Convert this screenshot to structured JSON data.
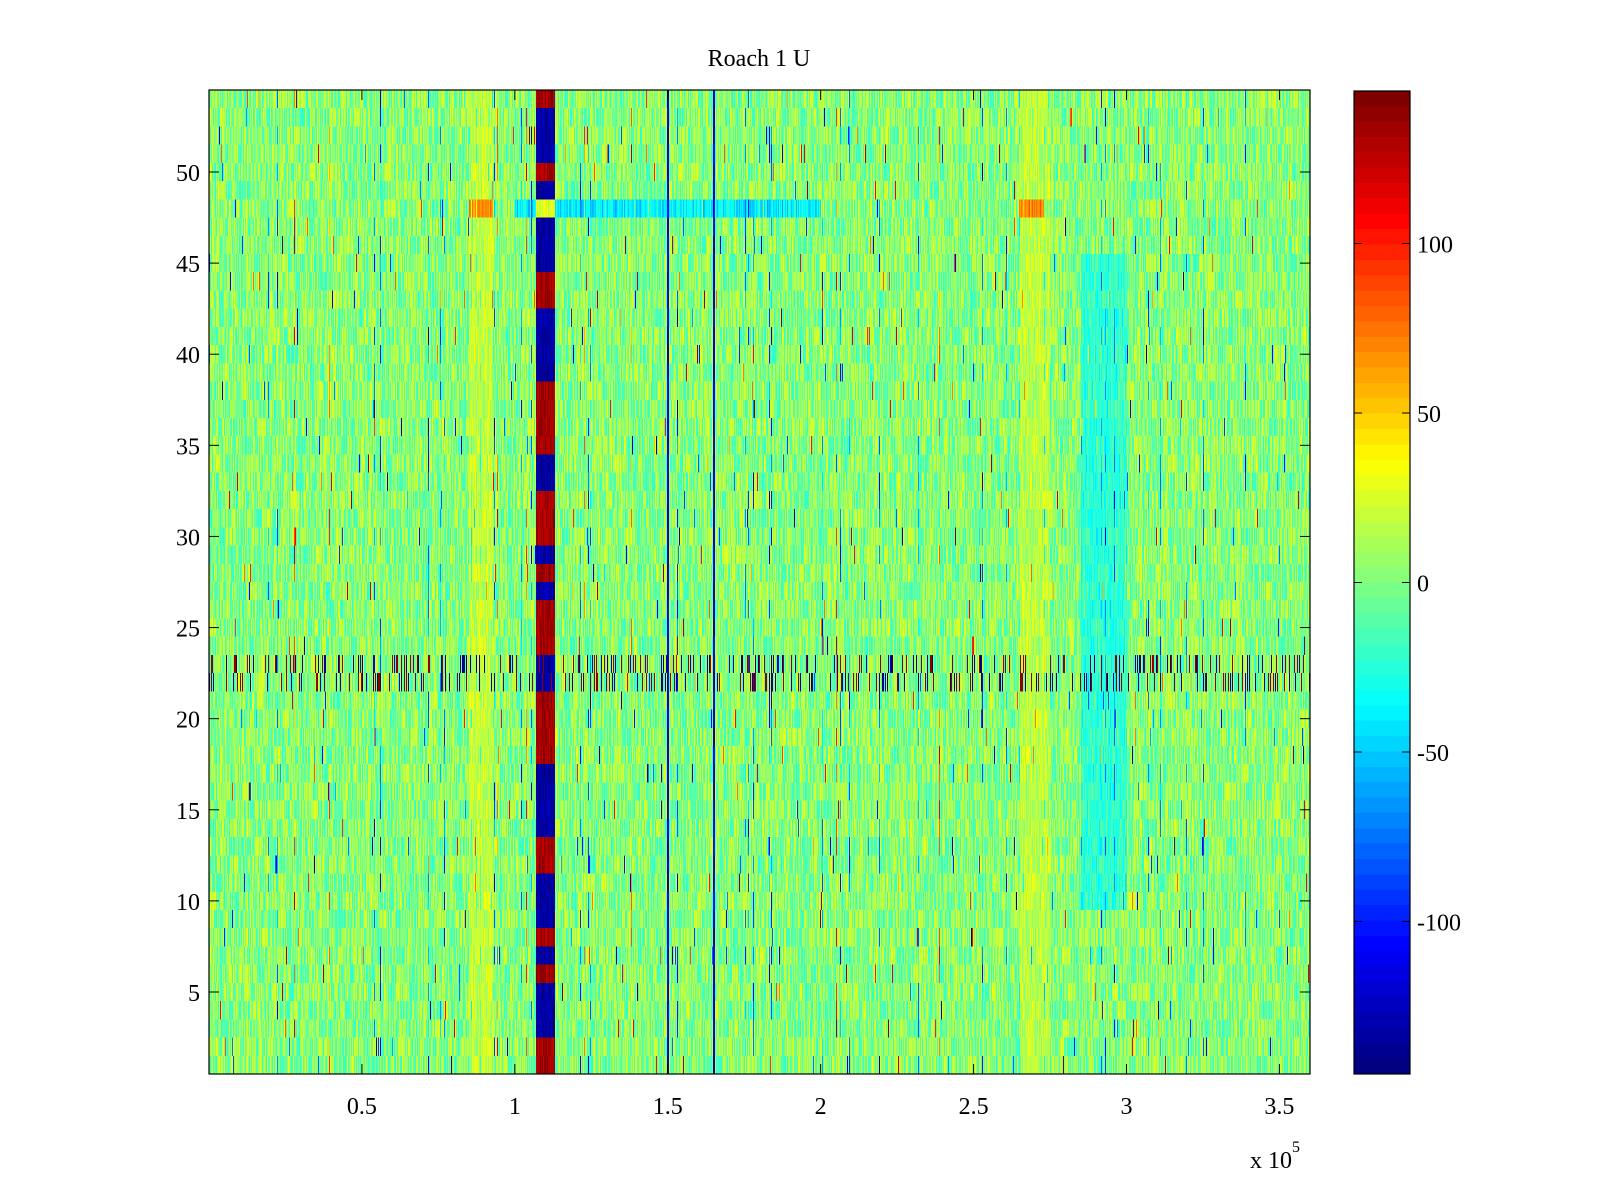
{
  "chart_data": {
    "type": "heatmap",
    "title": "Roach 1 U",
    "xlabel": "",
    "ylabel": "",
    "x_multiplier_label": "x 10",
    "x_multiplier_exponent": "5",
    "xlim": [
      0,
      360000
    ],
    "ylim": [
      0.5,
      54.5
    ],
    "x_ticks": [
      50000,
      100000,
      150000,
      200000,
      250000,
      300000,
      350000
    ],
    "x_tick_labels": [
      "0.5",
      "1",
      "1.5",
      "2",
      "2.5",
      "3",
      "3.5"
    ],
    "y_ticks": [
      5,
      10,
      15,
      20,
      25,
      30,
      35,
      40,
      45,
      50
    ],
    "y_tick_labels": [
      "5",
      "10",
      "15",
      "20",
      "25",
      "30",
      "35",
      "40",
      "45",
      "50"
    ],
    "rows": 54,
    "colormap": "jet",
    "colorbar": {
      "clim": [
        -145,
        145
      ],
      "ticks": [
        -100,
        -50,
        0,
        50,
        100
      ],
      "tick_labels": [
        "-100",
        "-50",
        "0",
        "50",
        "100"
      ]
    },
    "background_value_range": [
      -25,
      30
    ],
    "features": [
      {
        "description": "strong alternating band",
        "x_range": [
          107000,
          113000
        ],
        "rows": [
          1,
          54
        ],
        "values": [
          -145,
          145
        ]
      },
      {
        "description": "warm band",
        "x_range": [
          85000,
          93000
        ],
        "rows": [
          1,
          54
        ],
        "value": 30
      },
      {
        "description": "warm band",
        "x_range": [
          265000,
          275000
        ],
        "rows": [
          1,
          54
        ],
        "value": 25
      },
      {
        "description": "cool patch",
        "x_range": [
          285000,
          300000
        ],
        "rows": [
          10,
          45
        ],
        "value": -40
      },
      {
        "description": "hot patch",
        "x_range": [
          85000,
          93000
        ],
        "rows": [
          48,
          48
        ],
        "value": 100
      },
      {
        "description": "hot patch",
        "x_range": [
          265000,
          273000
        ],
        "rows": [
          48,
          48
        ],
        "value": 100
      },
      {
        "description": "blue stripe",
        "x_range": [
          100000,
          200000
        ],
        "rows": [
          48,
          48
        ],
        "value": -70
      },
      {
        "description": "high-variance rows",
        "x_range": [
          0,
          360000
        ],
        "rows": [
          22,
          23
        ],
        "values": [
          -140,
          140
        ]
      },
      {
        "description": "dark vertical lines",
        "x_values": [
          150000,
          165000
        ],
        "rows": [
          1,
          54
        ],
        "value": -130
      }
    ],
    "grid": false,
    "legend": "none"
  }
}
